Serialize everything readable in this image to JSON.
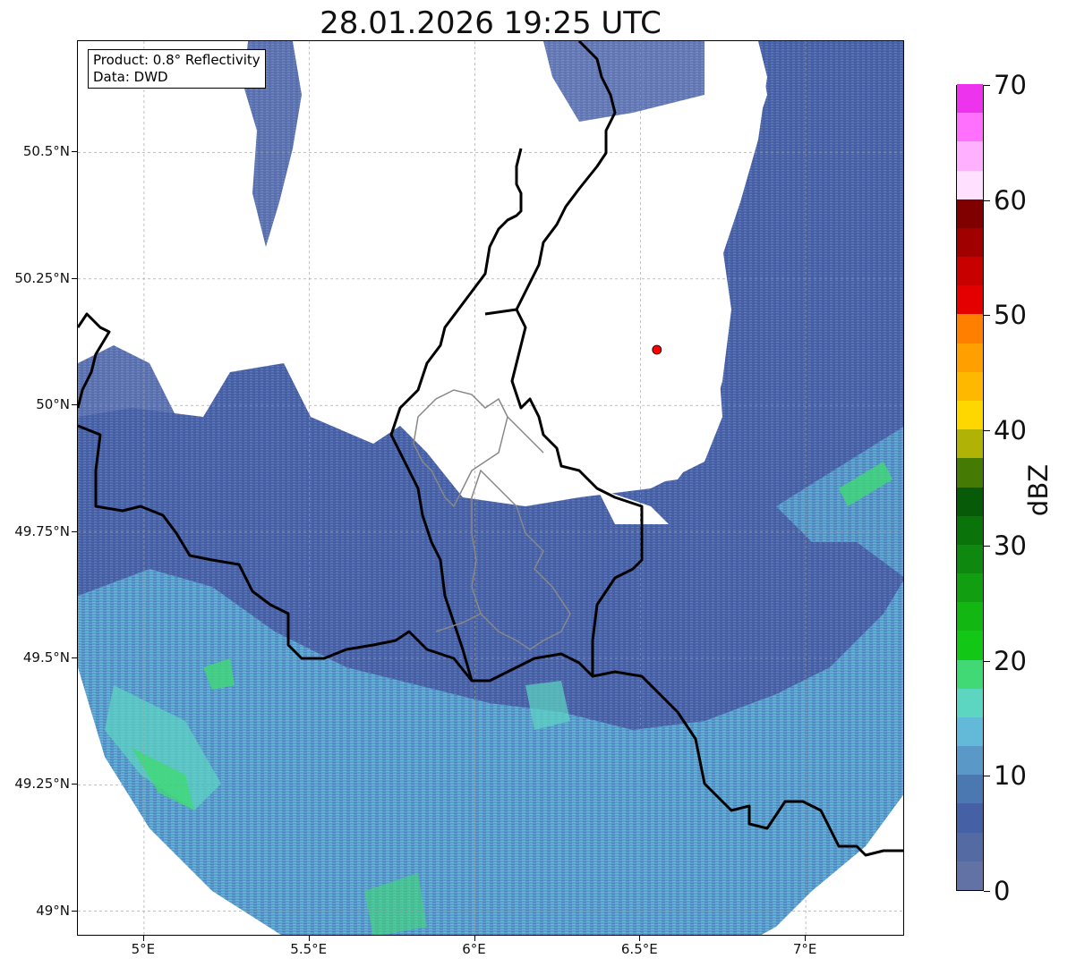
{
  "title": "28.01.2026 19:25 UTC",
  "product_box": {
    "line1": "Product: 0.8° Reflectivity",
    "line2": "Data: DWD"
  },
  "map": {
    "lon_range": [
      4.8,
      7.3
    ],
    "lat_range": [
      48.95,
      50.72
    ],
    "lat_ticks": [
      {
        "value": 50.5,
        "label": "50.5°N"
      },
      {
        "value": 50.25,
        "label": "50.25°N"
      },
      {
        "value": 50.0,
        "label": "50°N"
      },
      {
        "value": 49.75,
        "label": "49.75°N"
      },
      {
        "value": 49.5,
        "label": "49.5°N"
      },
      {
        "value": 49.25,
        "label": "49.25°N"
      },
      {
        "value": 49.0,
        "label": "49°N"
      }
    ],
    "lon_ticks": [
      {
        "value": 5.0,
        "label": "5°E"
      },
      {
        "value": 5.5,
        "label": "5.5°E"
      },
      {
        "value": 6.0,
        "label": "6°E"
      },
      {
        "value": 6.5,
        "label": "6.5°E"
      },
      {
        "value": 7.0,
        "label": "7°E"
      }
    ],
    "radar_site": {
      "lon": 6.55,
      "lat": 50.11,
      "color": "#ff0000"
    },
    "grid": true
  },
  "colorbar": {
    "unit": "dBZ",
    "min": 0,
    "max": 70,
    "labels": [
      {
        "value": 0,
        "label": "0"
      },
      {
        "value": 10,
        "label": "10"
      },
      {
        "value": 20,
        "label": "20"
      },
      {
        "value": 30,
        "label": "30"
      },
      {
        "value": 40,
        "label": "40"
      },
      {
        "value": 50,
        "label": "50"
      },
      {
        "value": 60,
        "label": "60"
      },
      {
        "value": 70,
        "label": "70"
      }
    ],
    "colors": [
      "#6272a4",
      "#536ba2",
      "#4660a5",
      "#4b78b0",
      "#5a98c8",
      "#62bad8",
      "#5cd6c0",
      "#40d975",
      "#12c716",
      "#12b712",
      "#119f11",
      "#0e880e",
      "#0a730a",
      "#075a07",
      "#457a05",
      "#b0b205",
      "#ffd700",
      "#ffb800",
      "#ffa000",
      "#ff8000",
      "#e50000",
      "#c80000",
      "#a00000",
      "#800000",
      "#ffe0ff",
      "#ffb0ff",
      "#ff70ff",
      "#ee33ee"
    ]
  }
}
